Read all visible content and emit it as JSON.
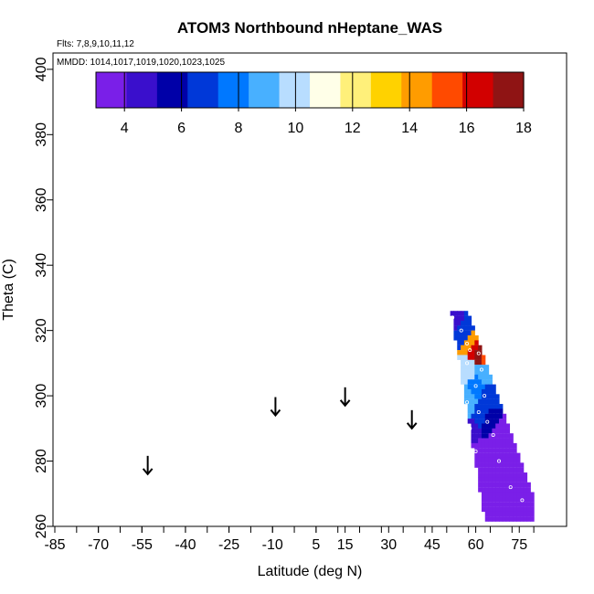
{
  "chart_data": {
    "type": "heatmap",
    "title": "ATOM3 Northbound nHeptane_WAS",
    "flights_note": "Flts: 7,8,9,10,11,12",
    "dates_note": "MMDD: 1014,1017,1019,1020,1023,1025",
    "xlabel": "Latitude (deg N)",
    "ylabel": "Theta (C)",
    "xlim": [
      -90,
      90
    ],
    "ylim": [
      260,
      405
    ],
    "x_ticks": [
      -85,
      -70,
      -55,
      -40,
      -25,
      -10,
      5,
      15,
      30,
      45,
      60,
      75
    ],
    "y_ticks": [
      260,
      280,
      300,
      320,
      340,
      360,
      380,
      400
    ],
    "colorbar": {
      "range": [
        3,
        18
      ],
      "ticks": [
        4,
        6,
        8,
        10,
        12,
        14,
        16,
        18
      ],
      "colors": [
        "#7a1fe8",
        "#3a0fcc",
        "#0000a8",
        "#0038d8",
        "#0078ff",
        "#48b0ff",
        "#b8ddff",
        "#ffffe8",
        "#fff07a",
        "#ffd200",
        "#ff9c00",
        "#ff4a00",
        "#d20000",
        "#8f1414"
      ]
    },
    "arrows": [
      {
        "lat": -53,
        "theta": 276
      },
      {
        "lat": -9,
        "theta": 294
      },
      {
        "lat": 15,
        "theta": 297
      },
      {
        "lat": 38,
        "theta": 290
      }
    ],
    "data_region": {
      "note": "interpolated heatmap; values in ppt, colored by colorbar",
      "cells": [
        {
          "lat": 52,
          "theta": 324,
          "value": 5
        },
        {
          "lat": 55,
          "theta": 320,
          "value": 7
        },
        {
          "lat": 57,
          "theta": 316,
          "value": 14
        },
        {
          "lat": 58,
          "theta": 314,
          "value": 16
        },
        {
          "lat": 61,
          "theta": 313,
          "value": 17
        },
        {
          "lat": 63,
          "theta": 313,
          "value": 15
        },
        {
          "lat": 57,
          "theta": 310,
          "value": 10
        },
        {
          "lat": 62,
          "theta": 308,
          "value": 9
        },
        {
          "lat": 60,
          "theta": 303,
          "value": 8
        },
        {
          "lat": 63,
          "theta": 300,
          "value": 7
        },
        {
          "lat": 57,
          "theta": 298,
          "value": 9
        },
        {
          "lat": 61,
          "theta": 295,
          "value": 7
        },
        {
          "lat": 64,
          "theta": 292,
          "value": 6
        },
        {
          "lat": 58,
          "theta": 290,
          "value": 5
        },
        {
          "lat": 66,
          "theta": 288,
          "value": 4
        },
        {
          "lat": 60,
          "theta": 283,
          "value": 4
        },
        {
          "lat": 68,
          "theta": 280,
          "value": 3.5
        },
        {
          "lat": 72,
          "theta": 272,
          "value": 3.5
        },
        {
          "lat": 76,
          "theta": 268,
          "value": 3.5
        }
      ]
    }
  }
}
